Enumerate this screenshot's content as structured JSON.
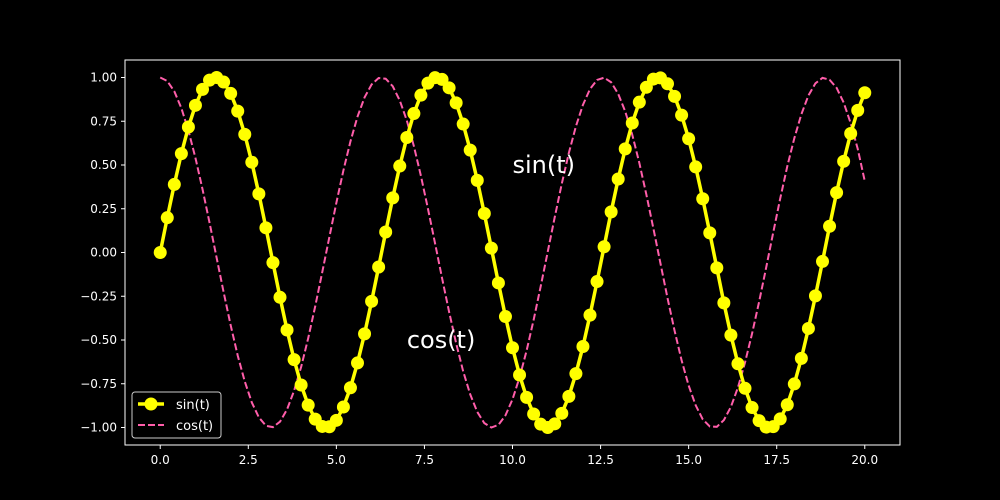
{
  "chart_data": {
    "type": "line",
    "title": "",
    "xlabel": "",
    "ylabel": "",
    "xlim": [
      -1.0,
      21.0
    ],
    "ylim": [
      -1.1,
      1.1
    ],
    "x_ticks": [
      0.0,
      2.5,
      5.0,
      7.5,
      10.0,
      12.5,
      15.0,
      17.5,
      20.0
    ],
    "x_tick_labels": [
      "0.0",
      "2.5",
      "5.0",
      "7.5",
      "10.0",
      "12.5",
      "15.0",
      "17.5",
      "20.0"
    ],
    "y_ticks": [
      -1.0,
      -0.75,
      -0.5,
      -0.25,
      0.0,
      0.25,
      0.5,
      0.75,
      1.0
    ],
    "y_tick_labels": [
      "−1.00",
      "−0.75",
      "−0.50",
      "−0.25",
      "0.00",
      "0.25",
      "0.50",
      "0.75",
      "1.00"
    ],
    "grid": false,
    "legend": "lower-left",
    "colors": {
      "background": "#000000",
      "axes": "#ffffff",
      "sin": "#ffff00",
      "cos": "#ff5eaa"
    },
    "x": [
      0.0,
      0.2,
      0.4,
      0.6,
      0.8,
      1.0,
      1.2,
      1.4,
      1.6,
      1.8,
      2.0,
      2.2,
      2.4,
      2.6,
      2.8,
      3.0,
      3.2,
      3.4,
      3.6,
      3.8,
      4.0,
      4.2,
      4.4,
      4.6,
      4.8,
      5.0,
      5.2,
      5.4,
      5.6,
      5.8,
      6.0,
      6.2,
      6.4,
      6.6,
      6.8,
      7.0,
      7.2,
      7.4,
      7.6,
      7.8,
      8.0,
      8.2,
      8.4,
      8.6,
      8.8,
      9.0,
      9.2,
      9.4,
      9.6,
      9.8,
      10.0,
      10.2,
      10.4,
      10.6,
      10.8,
      11.0,
      11.2,
      11.4,
      11.6,
      11.8,
      12.0,
      12.2,
      12.4,
      12.6,
      12.8,
      13.0,
      13.2,
      13.4,
      13.6,
      13.8,
      14.0,
      14.2,
      14.4,
      14.6,
      14.8,
      15.0,
      15.2,
      15.4,
      15.6,
      15.8,
      16.0,
      16.2,
      16.4,
      16.6,
      16.8,
      17.0,
      17.2,
      17.4,
      17.6,
      17.8,
      18.0,
      18.2,
      18.4,
      18.6,
      18.8,
      19.0,
      19.2,
      19.4,
      19.6,
      19.8,
      20.0
    ],
    "series": [
      {
        "name": "sin(t)",
        "style": "solid-circle-markers",
        "values": [
          0.0,
          0.199,
          0.389,
          0.565,
          0.717,
          0.841,
          0.932,
          0.985,
          1.0,
          0.974,
          0.909,
          0.808,
          0.675,
          0.516,
          0.335,
          0.141,
          -0.058,
          -0.256,
          -0.443,
          -0.612,
          -0.757,
          -0.872,
          -0.952,
          -0.994,
          -0.996,
          -0.959,
          -0.883,
          -0.773,
          -0.631,
          -0.465,
          -0.279,
          -0.083,
          0.117,
          0.312,
          0.494,
          0.657,
          0.794,
          0.899,
          0.968,
          0.999,
          0.989,
          0.941,
          0.855,
          0.734,
          0.585,
          0.412,
          0.223,
          0.025,
          -0.174,
          -0.366,
          -0.544,
          -0.7,
          -0.828,
          -0.923,
          -0.981,
          -1.0,
          -0.979,
          -0.919,
          -0.822,
          -0.692,
          -0.537,
          -0.358,
          -0.166,
          0.033,
          0.232,
          0.42,
          0.592,
          0.74,
          0.859,
          0.944,
          0.991,
          0.998,
          0.964,
          0.892,
          0.785,
          0.65,
          0.489,
          0.307,
          0.112,
          -0.088,
          -0.288,
          -0.472,
          -0.636,
          -0.776,
          -0.886,
          -0.961,
          -0.998,
          -0.995,
          -0.951,
          -0.87,
          -0.751,
          -0.605,
          -0.434,
          -0.248,
          -0.051,
          0.15,
          0.342,
          0.521,
          0.68,
          0.812,
          0.913
        ]
      },
      {
        "name": "cos(t)",
        "style": "dashed",
        "values": [
          1.0,
          0.98,
          0.921,
          0.825,
          0.697,
          0.54,
          0.362,
          0.17,
          -0.029,
          -0.227,
          -0.416,
          -0.589,
          -0.737,
          -0.857,
          -0.942,
          -0.99,
          -0.998,
          -0.967,
          -0.897,
          -0.79,
          -0.654,
          -0.49,
          -0.307,
          -0.112,
          0.087,
          0.284,
          0.469,
          0.635,
          0.776,
          0.886,
          0.96,
          0.997,
          0.993,
          0.95,
          0.869,
          0.754,
          0.608,
          0.438,
          0.25,
          0.054,
          -0.146,
          -0.339,
          -0.519,
          -0.679,
          -0.811,
          -0.911,
          -0.975,
          -1.0,
          -0.985,
          -0.931,
          -0.839,
          -0.714,
          -0.561,
          -0.385,
          -0.194,
          0.004,
          0.203,
          0.394,
          0.569,
          0.721,
          0.844,
          0.934,
          0.986,
          0.999,
          0.973,
          0.907,
          0.806,
          0.673,
          0.512,
          0.331,
          0.137,
          -0.062,
          -0.26,
          -0.446,
          -0.616,
          -0.76,
          -0.873,
          -0.953,
          -0.994,
          -0.996,
          -0.958,
          -0.882,
          -0.771,
          -0.629,
          -0.464,
          -0.282,
          -0.087,
          0.113,
          0.309,
          0.492,
          0.653,
          0.79,
          0.897,
          0.967,
          0.998,
          0.987,
          0.941,
          0.857,
          0.739,
          0.592,
          0.408
        ]
      }
    ],
    "annotations": [
      {
        "text": "sin(t)",
        "x": 10.0,
        "y": 0.5
      },
      {
        "text": "cos(t)",
        "x": 7.0,
        "y": -0.5
      }
    ]
  }
}
